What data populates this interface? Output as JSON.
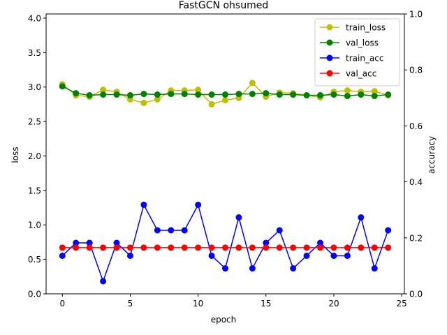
{
  "chart_data": {
    "type": "line",
    "title": "FastGCN ohsumed",
    "xlabel": "epoch",
    "ylabel_left": "loss",
    "ylabel_right": "accuracy",
    "xlim": [
      -1.2,
      25.2
    ],
    "ylim_left": [
      0,
      4.06
    ],
    "ylim_right": [
      0,
      1.0
    ],
    "x_ticks": [
      0,
      5,
      10,
      15,
      20,
      25
    ],
    "y_ticks_left": [
      0.0,
      0.5,
      1.0,
      1.5,
      2.0,
      2.5,
      3.0,
      3.5,
      4.0
    ],
    "y_ticks_left_labels": [
      "0.0",
      "0.5",
      "1.0",
      "1.5",
      "2.0",
      "2.5",
      "3.0",
      "3.5",
      "4.0"
    ],
    "y_ticks_right": [
      0.0,
      0.2,
      0.4,
      0.6,
      0.8,
      1.0
    ],
    "y_ticks_right_labels": [
      "0.0",
      "0.2",
      "0.4",
      "0.6",
      "0.8",
      "1.0"
    ],
    "grid": false,
    "legend_position": "top-right",
    "x": [
      0,
      1,
      2,
      3,
      4,
      5,
      6,
      7,
      8,
      9,
      10,
      11,
      12,
      13,
      14,
      15,
      16,
      17,
      18,
      19,
      20,
      21,
      22,
      23,
      24
    ],
    "series": [
      {
        "name": "train_loss",
        "color": "#bfbf00",
        "axis": "left",
        "values": [
          3.04,
          2.88,
          2.86,
          2.96,
          2.93,
          2.82,
          2.77,
          2.82,
          2.95,
          2.95,
          2.96,
          2.75,
          2.81,
          2.84,
          3.06,
          2.86,
          2.92,
          2.91,
          2.88,
          2.85,
          2.93,
          2.95,
          2.93,
          2.94,
          2.88
        ]
      },
      {
        "name": "val_loss",
        "color": "#008000",
        "axis": "left",
        "values": [
          3.01,
          2.91,
          2.88,
          2.89,
          2.89,
          2.88,
          2.9,
          2.89,
          2.9,
          2.9,
          2.89,
          2.89,
          2.89,
          2.9,
          2.9,
          2.91,
          2.89,
          2.89,
          2.88,
          2.88,
          2.89,
          2.87,
          2.89,
          2.87,
          2.89
        ]
      },
      {
        "name": "train_acc",
        "color": "#0000ff",
        "axis": "right",
        "values": [
          0.136,
          0.182,
          0.182,
          0.045,
          0.182,
          0.136,
          0.318,
          0.227,
          0.227,
          0.227,
          0.318,
          0.136,
          0.091,
          0.273,
          0.091,
          0.182,
          0.227,
          0.091,
          0.136,
          0.182,
          0.136,
          0.136,
          0.273,
          0.091,
          0.227
        ]
      },
      {
        "name": "val_acc",
        "color": "#ff0000",
        "axis": "right",
        "values": [
          0.165,
          0.165,
          0.165,
          0.165,
          0.165,
          0.165,
          0.165,
          0.165,
          0.165,
          0.165,
          0.165,
          0.165,
          0.165,
          0.165,
          0.165,
          0.165,
          0.165,
          0.165,
          0.165,
          0.165,
          0.165,
          0.165,
          0.165,
          0.165,
          0.165
        ]
      }
    ]
  }
}
